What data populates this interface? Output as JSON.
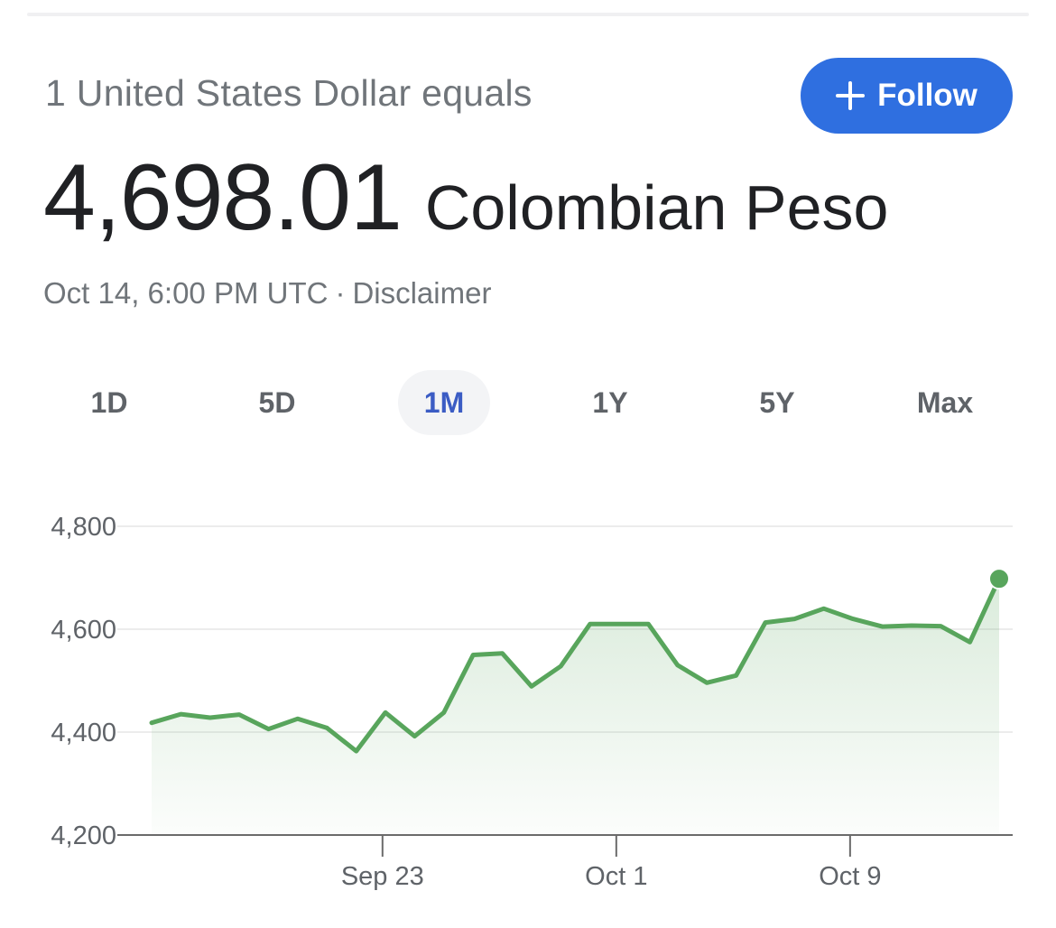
{
  "header": {
    "subtitle": "1 United States Dollar equals",
    "follow_label": "Follow",
    "follow_icon": "plus-icon",
    "accent_color": "#2f6fe0"
  },
  "rate": {
    "value": "4,698.01",
    "unit": "Colombian Peso"
  },
  "meta": {
    "timestamp": "Oct 14, 6:00 PM UTC",
    "separator": "·",
    "disclaimer": "Disclaimer"
  },
  "tabs": [
    {
      "label": "1D",
      "active": false
    },
    {
      "label": "5D",
      "active": false
    },
    {
      "label": "1M",
      "active": true
    },
    {
      "label": "1Y",
      "active": false
    },
    {
      "label": "5Y",
      "active": false
    },
    {
      "label": "Max",
      "active": false
    }
  ],
  "chart_data": {
    "type": "area",
    "title": "",
    "xlabel": "",
    "ylabel": "",
    "ylim": [
      4200,
      4800
    ],
    "y_ticks": [
      {
        "value": 4800,
        "label": "4,800"
      },
      {
        "value": 4600,
        "label": "4,600"
      },
      {
        "value": 4400,
        "label": "4,400"
      },
      {
        "value": 4200,
        "label": "4,200"
      }
    ],
    "x_ticks": [
      {
        "label": "Sep 23",
        "x": 7.9
      },
      {
        "label": "Oct 1",
        "x": 15.9
      },
      {
        "label": "Oct 9",
        "x": 23.9
      }
    ],
    "x_range": [
      0,
      29
    ],
    "grid": true,
    "line_color": "#58a55c",
    "fill_color": "#58a55c",
    "series": [
      {
        "values": [
          {
            "x": 0,
            "y": 4418
          },
          {
            "x": 1,
            "y": 4435
          },
          {
            "x": 2,
            "y": 4428
          },
          {
            "x": 3,
            "y": 4434
          },
          {
            "x": 4,
            "y": 4406
          },
          {
            "x": 5,
            "y": 4426
          },
          {
            "x": 6,
            "y": 4408
          },
          {
            "x": 7,
            "y": 4363
          },
          {
            "x": 8,
            "y": 4438
          },
          {
            "x": 9,
            "y": 4392
          },
          {
            "x": 10,
            "y": 4438
          },
          {
            "x": 11,
            "y": 4550
          },
          {
            "x": 12,
            "y": 4553
          },
          {
            "x": 13,
            "y": 4489
          },
          {
            "x": 14,
            "y": 4528
          },
          {
            "x": 15,
            "y": 4610
          },
          {
            "x": 16,
            "y": 4610
          },
          {
            "x": 17,
            "y": 4610
          },
          {
            "x": 18,
            "y": 4530
          },
          {
            "x": 19,
            "y": 4496
          },
          {
            "x": 20,
            "y": 4510
          },
          {
            "x": 21,
            "y": 4613
          },
          {
            "x": 22,
            "y": 4620
          },
          {
            "x": 23,
            "y": 4640
          },
          {
            "x": 24,
            "y": 4620
          },
          {
            "x": 25,
            "y": 4605
          },
          {
            "x": 26,
            "y": 4607
          },
          {
            "x": 27,
            "y": 4606
          },
          {
            "x": 28,
            "y": 4575
          },
          {
            "x": 29,
            "y": 4698
          }
        ]
      }
    ]
  }
}
